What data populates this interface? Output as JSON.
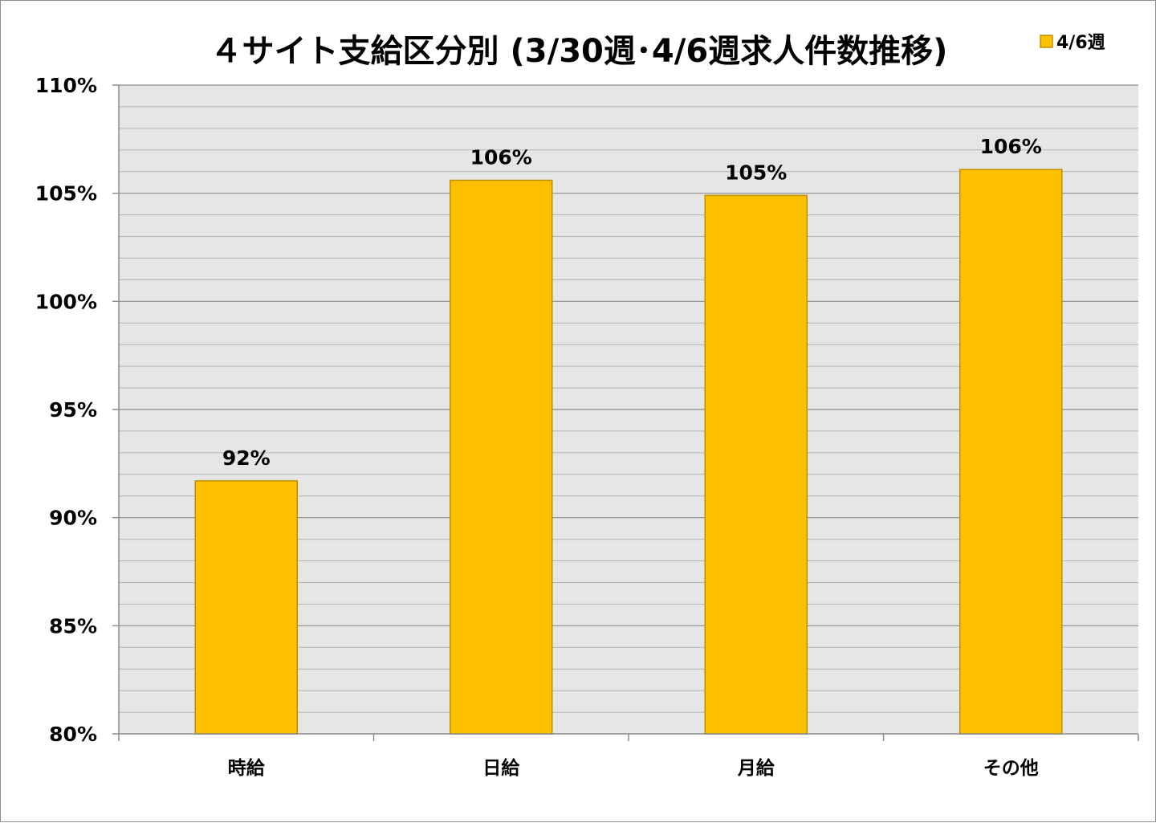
{
  "colors": {
    "bar_fill": "#FFC000",
    "bar_stroke": "#BF9000",
    "plot_background": "#E6E6E6",
    "major_grid": "#8C8C8C",
    "minor_grid": "#B4B4B4",
    "axis": "#8C8C8C"
  },
  "chart_data": {
    "type": "bar",
    "title": "４サイト支給区分別 (3/30週･4/6週求人件数推移)",
    "xlabel": "",
    "ylabel": "",
    "categories": [
      "時給",
      "日給",
      "月給",
      "その他"
    ],
    "series": [
      {
        "name": "4/6週",
        "values": [
          91.7,
          105.6,
          104.9,
          106.1
        ],
        "data_labels": [
          "92%",
          "106%",
          "105%",
          "106%"
        ]
      }
    ],
    "ylim": [
      80,
      110
    ],
    "y_major_ticks": [
      80,
      85,
      90,
      95,
      100,
      105,
      110
    ],
    "y_tick_labels": [
      "80%",
      "85%",
      "90%",
      "95%",
      "100%",
      "105%",
      "110%"
    ],
    "y_minor_step": 1,
    "grid": true,
    "legend_position": "top-right"
  }
}
